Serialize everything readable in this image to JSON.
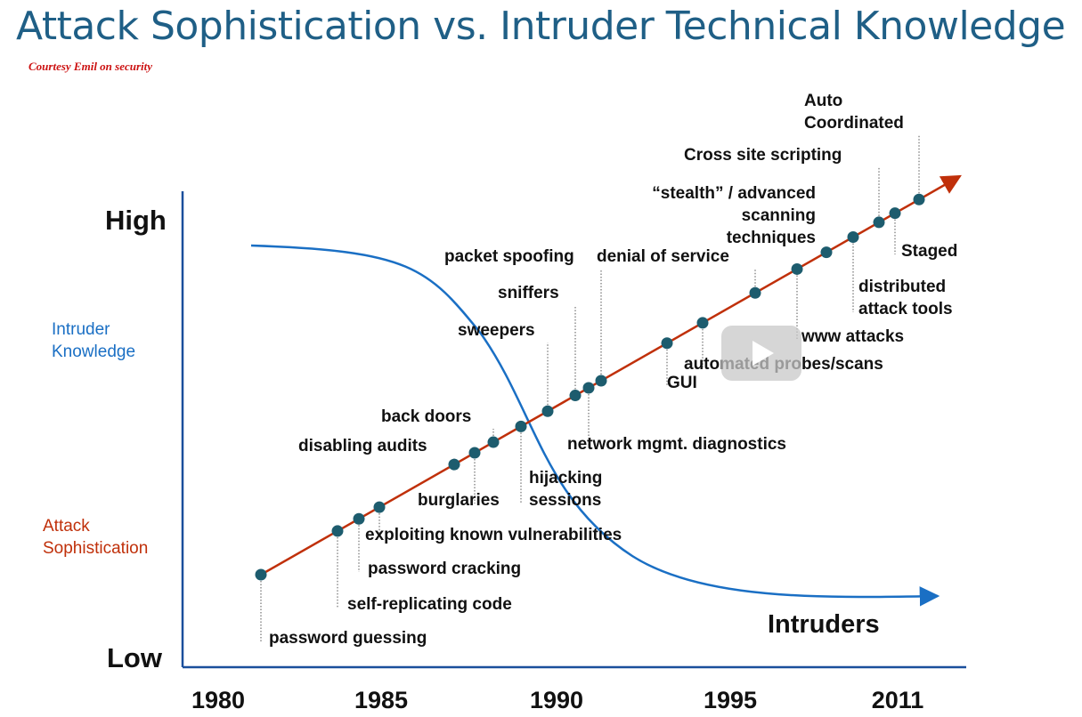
{
  "title": "Attack Sophistication vs. Intruder Technical Knowledge",
  "courtesy": "Courtesy Emil on security",
  "colors": {
    "title": "#1f5f86",
    "axis": "#1a4f9c",
    "intruder_curve": "#1a6fc4",
    "attack_line": "#c0300a",
    "dot": "#1d5c6e",
    "courtesy": "#cc1111"
  },
  "play_button": {
    "icon": "play-icon"
  },
  "chart_data": {
    "type": "line",
    "title": "Attack Sophistication vs. Intruder Technical Knowledge",
    "y_axis": {
      "high_label": "High",
      "low_label": "Low"
    },
    "x_axis": {
      "tick_labels": [
        "1980",
        "1985",
        "1990",
        "1995",
        "2011"
      ]
    },
    "grid": false,
    "series": [
      {
        "name": "Intruder Knowledge",
        "shape": "decreasing-sigmoid",
        "from": "high",
        "to": "low"
      },
      {
        "name": "Attack Sophistication",
        "shape": "increasing-linear",
        "from": "low",
        "to": "high"
      }
    ],
    "intruders_label": "Intruders",
    "attack_milestones": [
      {
        "label": [
          "password guessing"
        ],
        "year": 1981.2,
        "level": 0.2
      },
      {
        "label": [
          "self-replicating code"
        ],
        "year": 1983.4,
        "level": 0.26
      },
      {
        "label": [
          "password cracking"
        ],
        "year": 1984.0,
        "level": 0.27
      },
      {
        "label": [
          "exploiting known vulnerabilities"
        ],
        "year": 1984.6,
        "level": 0.29
      },
      {
        "label": [
          "disabling audits"
        ],
        "year": 1987.0,
        "level": 0.38
      },
      {
        "label": [
          "burglaries"
        ],
        "year": 1987.6,
        "level": 0.4
      },
      {
        "label": [
          "back doors"
        ],
        "year": 1988.1,
        "level": 0.42
      },
      {
        "label": [
          "hijacking",
          "sessions"
        ],
        "year": 1988.8,
        "level": 0.45
      },
      {
        "label": [
          "sweepers"
        ],
        "year": 1989.8,
        "level": 0.5
      },
      {
        "label": [
          "sniffers"
        ],
        "year": 1990.6,
        "level": 0.53
      },
      {
        "label": [
          "network mgmt. diagnostics"
        ],
        "year": 1991.0,
        "level": 0.54
      },
      {
        "label": [
          "packet spoofing"
        ],
        "year": 1991.3,
        "level": 0.55
      },
      {
        "label": [
          "GUI"
        ],
        "year": 1993.7,
        "level": 0.63
      },
      {
        "label": [
          "automated probes/scans"
        ],
        "year": 1994.3,
        "level": 0.65
      },
      {
        "label": [
          "denial of service"
        ],
        "year": 1995.8,
        "level": 0.7
      },
      {
        "label": [
          "www attacks"
        ],
        "year": 1996.9,
        "level": 0.74
      },
      {
        "label": [
          "“stealth” / advanced",
          "scanning",
          "techniques"
        ],
        "year": 1997.8,
        "level": 0.78
      },
      {
        "label": [
          "distributed",
          "attack tools"
        ],
        "year": 1998.6,
        "level": 0.8
      },
      {
        "label": [
          "Cross site scripting"
        ],
        "year": 1999.5,
        "level": 0.83
      },
      {
        "label": [
          "Staged"
        ],
        "year": 2000.0,
        "level": 0.85
      },
      {
        "label": [
          "Auto",
          "Coordinated"
        ],
        "year": 2000.7,
        "level": 0.87
      }
    ]
  }
}
